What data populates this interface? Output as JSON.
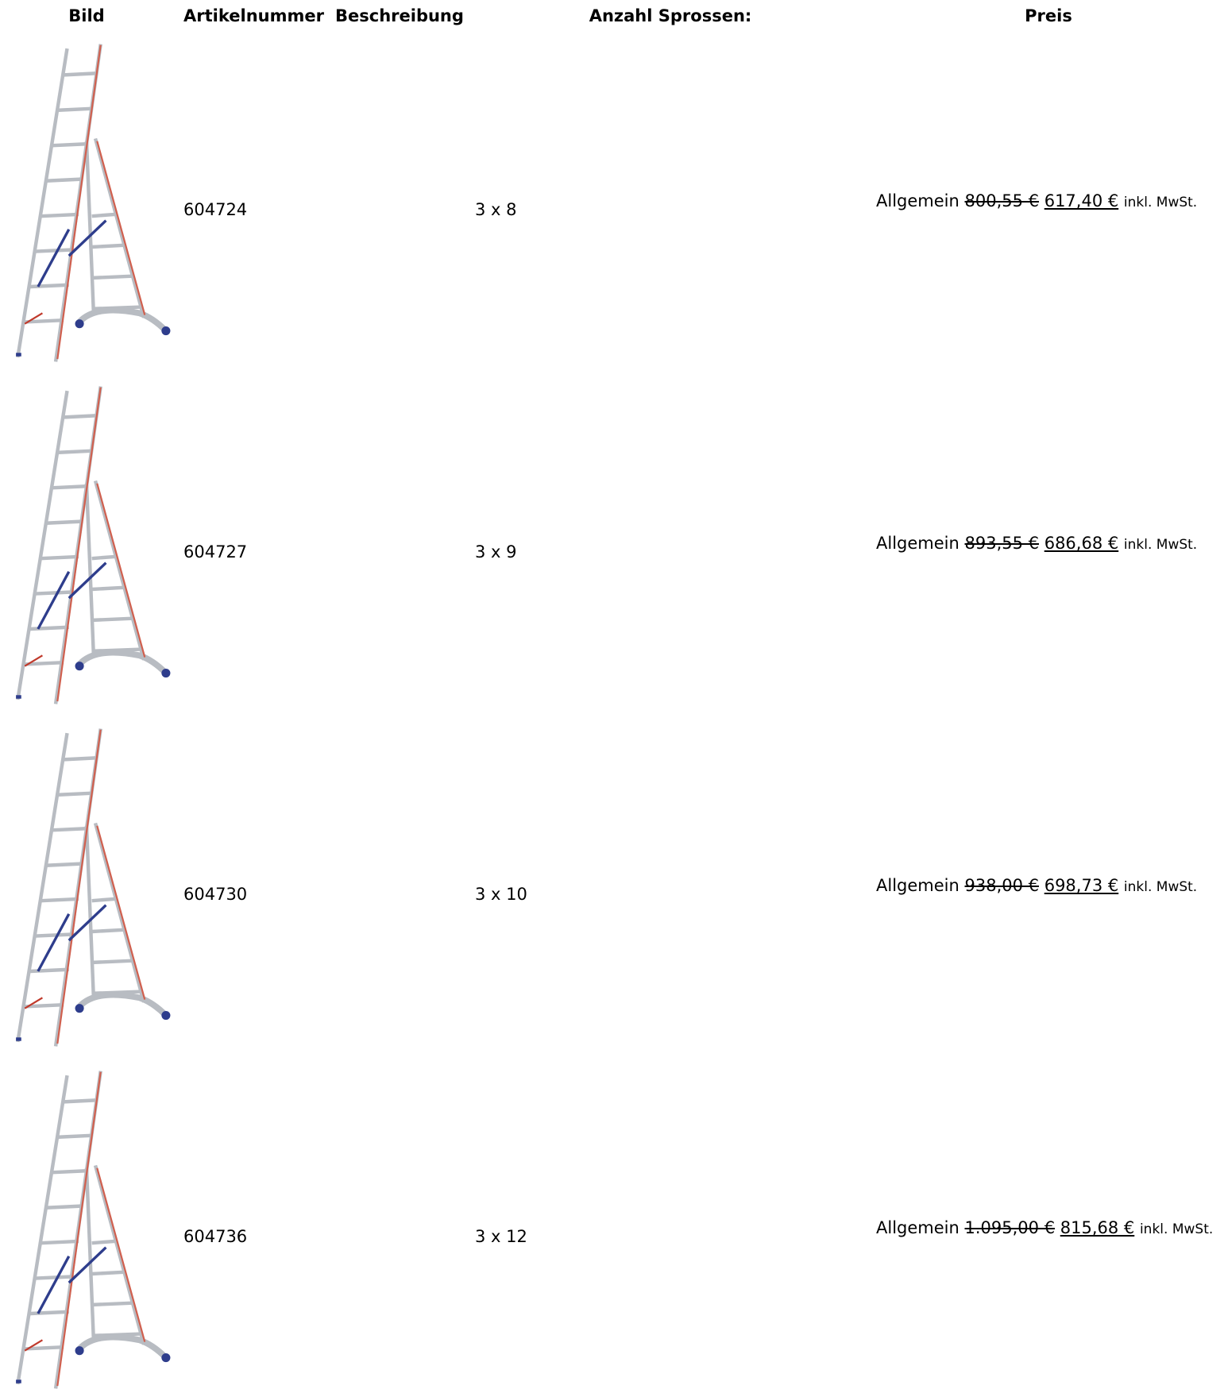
{
  "table": {
    "headers": [
      "Bild",
      "Artikelnummer",
      "Beschreibung",
      "Anzahl Sprossen:",
      "Preis"
    ],
    "rows": [
      {
        "article": "604724",
        "sprossen": "3 x 8",
        "price_group": "Allgemein",
        "old_price": "800,55 €",
        "new_price": "617,40 €",
        "tax_note": "inkl. MwSt."
      },
      {
        "article": "604727",
        "sprossen": "3 x 9",
        "price_group": "Allgemein",
        "old_price": "893,55 €",
        "new_price": "686,68 €",
        "tax_note": "inkl. MwSt."
      },
      {
        "article": "604730",
        "sprossen": "3 x 10",
        "price_group": "Allgemein",
        "old_price": "938,00 €",
        "new_price": "698,73 €",
        "tax_note": "inkl. MwSt."
      },
      {
        "article": "604736",
        "sprossen": "3 x 12",
        "price_group": "Allgemein",
        "old_price": "1.095,00 €",
        "new_price": "815,68 €",
        "tax_note": "inkl. MwSt."
      }
    ]
  }
}
